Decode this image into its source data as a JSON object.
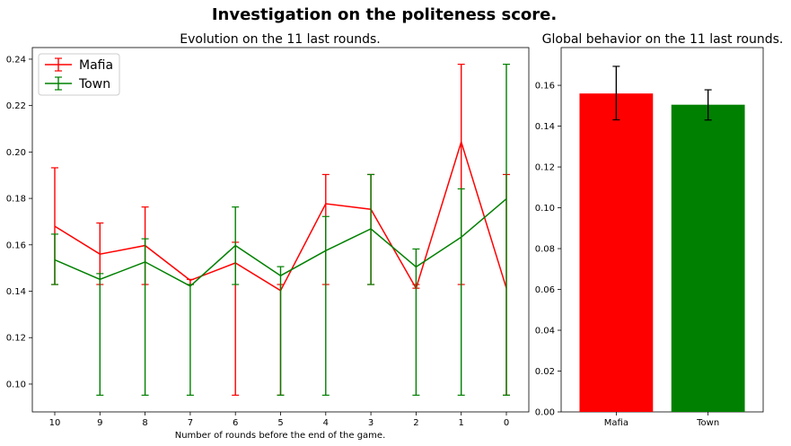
{
  "suptitle": "Investigation on the politeness score.",
  "chart_data": [
    {
      "type": "line",
      "title": "Evolution on the 11 last rounds.",
      "xlabel": "Number of rounds before the end of the game.",
      "ylabel": "",
      "x": [
        10,
        9,
        8,
        7,
        6,
        5,
        4,
        3,
        2,
        1,
        0
      ],
      "ylim": [
        0.088,
        0.245
      ],
      "yticks": [
        "0.10",
        "0.12",
        "0.14",
        "0.16",
        "0.18",
        "0.20",
        "0.22",
        "0.24"
      ],
      "legend": "top-left",
      "grid": false,
      "series": [
        {
          "name": "Mafia",
          "color": "#ff0000",
          "values": [
            0.168,
            0.156,
            0.1597,
            0.1447,
            0.1522,
            0.1403,
            0.1777,
            0.1753,
            0.1413,
            0.2043,
            0.1413
          ],
          "err_low": [
            0.1429,
            0.1429,
            0.1429,
            0.1429,
            0.0952,
            0.0952,
            0.1429,
            0.1429,
            0.1429,
            0.1429,
            0.0952
          ],
          "err_high": [
            0.1932,
            0.1694,
            0.1763,
            0.1451,
            0.1611,
            0.1429,
            0.1903,
            0.1903,
            0.1413,
            0.2378,
            0.1903
          ]
        },
        {
          "name": "Town",
          "color": "#008000",
          "values": [
            0.1535,
            0.1451,
            0.1526,
            0.1422,
            0.1597,
            0.1467,
            0.1575,
            0.1669,
            0.1505,
            0.1633,
            0.1798
          ],
          "err_low": [
            0.1429,
            0.0952,
            0.0952,
            0.0952,
            0.1429,
            0.0952,
            0.0952,
            0.1429,
            0.0952,
            0.0952,
            0.0952
          ],
          "err_high": [
            0.1646,
            0.1476,
            0.1626,
            0.1429,
            0.1763,
            0.1506,
            0.1722,
            0.1903,
            0.1582,
            0.1841,
            0.2378
          ]
        }
      ]
    },
    {
      "type": "bar",
      "title": "Global behavior on the 11 last rounds.",
      "xlabel": "",
      "ylabel": "",
      "categories": [
        "Mafia",
        "Town"
      ],
      "values": [
        0.156,
        0.1505
      ],
      "err_low": [
        0.1431,
        0.143
      ],
      "err_high": [
        0.1693,
        0.1578
      ],
      "colors": [
        "#ff0000",
        "#008000"
      ],
      "ylim": [
        0.0,
        0.1785
      ],
      "yticks": [
        "0.00",
        "0.02",
        "0.04",
        "0.06",
        "0.08",
        "0.10",
        "0.12",
        "0.14",
        "0.16"
      ]
    }
  ]
}
